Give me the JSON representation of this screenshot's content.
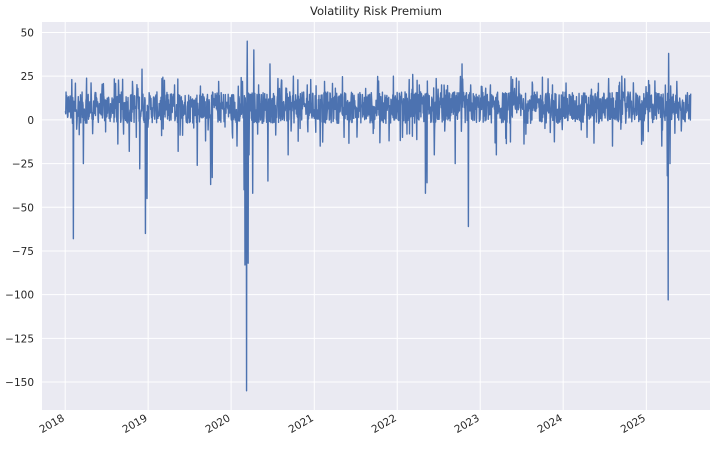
{
  "chart_data": {
    "type": "line",
    "title": "Volatility Risk Premium",
    "xlabel": "",
    "ylabel": "",
    "grid": true,
    "style": "seaborn-darkgrid",
    "x_range": [
      "2017-09-21",
      "2025-10-08"
    ],
    "ylim": [
      -166,
      56
    ],
    "yticks": [
      50,
      25,
      0,
      -25,
      -50,
      -75,
      -100,
      -125,
      -150
    ],
    "yticklabels": [
      "50",
      "25",
      "0",
      "−25",
      "−50",
      "−75",
      "−100",
      "−125",
      "−150"
    ],
    "xticks": [
      "2018-01-01",
      "2019-01-01",
      "2020-01-01",
      "2021-01-01",
      "2022-01-01",
      "2023-01-01",
      "2024-01-01",
      "2025-01-01"
    ],
    "xticklabels": [
      "2018",
      "2019",
      "2020",
      "2021",
      "2022",
      "2023",
      "2024",
      "2025"
    ],
    "colors": {
      "line": "#4c72b0",
      "plot_bg": "#eaeaf2",
      "grid": "#ffffff",
      "text": "#262626"
    },
    "series": [
      {
        "name": "",
        "values": [
          {
            "x": "2018-01-02",
            "y": 5
          },
          {
            "x": "2018-01-20",
            "y": 10
          },
          {
            "x": "2018-02-02",
            "y": -2
          },
          {
            "x": "2018-02-06",
            "y": -68
          },
          {
            "x": "2018-02-12",
            "y": 5
          },
          {
            "x": "2018-02-15",
            "y": 21
          },
          {
            "x": "2018-03-01",
            "y": 5
          },
          {
            "x": "2018-03-22",
            "y": -25
          },
          {
            "x": "2018-04-15",
            "y": 8
          },
          {
            "x": "2018-05-20",
            "y": 12
          },
          {
            "x": "2018-06-25",
            "y": 2
          },
          {
            "x": "2018-08-01",
            "y": 8
          },
          {
            "x": "2018-09-01",
            "y": 10
          },
          {
            "x": "2018-10-10",
            "y": -18
          },
          {
            "x": "2018-10-24",
            "y": 22
          },
          {
            "x": "2018-11-10",
            "y": -10
          },
          {
            "x": "2018-11-25",
            "y": -28
          },
          {
            "x": "2018-12-05",
            "y": 29
          },
          {
            "x": "2018-12-20",
            "y": -65
          },
          {
            "x": "2018-12-27",
            "y": -45
          },
          {
            "x": "2019-01-08",
            "y": 12
          },
          {
            "x": "2019-02-10",
            "y": 8
          },
          {
            "x": "2019-03-15",
            "y": 10
          },
          {
            "x": "2019-04-20",
            "y": 12
          },
          {
            "x": "2019-05-13",
            "y": -18
          },
          {
            "x": "2019-06-10",
            "y": 10
          },
          {
            "x": "2019-07-15",
            "y": 12
          },
          {
            "x": "2019-08-05",
            "y": -26
          },
          {
            "x": "2019-09-05",
            "y": 12
          },
          {
            "x": "2019-10-03",
            "y": -37
          },
          {
            "x": "2019-10-10",
            "y": -33
          },
          {
            "x": "2019-11-10",
            "y": 14
          },
          {
            "x": "2019-12-15",
            "y": 10
          },
          {
            "x": "2020-01-27",
            "y": -15
          },
          {
            "x": "2020-02-20",
            "y": 22
          },
          {
            "x": "2020-02-27",
            "y": -40
          },
          {
            "x": "2020-03-02",
            "y": -83
          },
          {
            "x": "2020-03-09",
            "y": -155
          },
          {
            "x": "2020-03-12",
            "y": 45
          },
          {
            "x": "2020-03-16",
            "y": -82
          },
          {
            "x": "2020-03-20",
            "y": -20
          },
          {
            "x": "2020-03-25",
            "y": 5
          },
          {
            "x": "2020-04-05",
            "y": -42
          },
          {
            "x": "2020-04-10",
            "y": 40
          },
          {
            "x": "2020-05-01",
            "y": 20
          },
          {
            "x": "2020-06-11",
            "y": -35
          },
          {
            "x": "2020-06-20",
            "y": 32
          },
          {
            "x": "2020-08-01",
            "y": 18
          },
          {
            "x": "2020-09-08",
            "y": -20
          },
          {
            "x": "2020-10-01",
            "y": 25
          },
          {
            "x": "2020-11-01",
            "y": 15
          },
          {
            "x": "2020-12-01",
            "y": 20
          },
          {
            "x": "2021-01-27",
            "y": -15
          },
          {
            "x": "2021-02-15",
            "y": 22
          },
          {
            "x": "2021-03-15",
            "y": 8
          },
          {
            "x": "2021-05-12",
            "y": -10
          },
          {
            "x": "2021-06-18",
            "y": 15
          },
          {
            "x": "2021-08-15",
            "y": 18
          },
          {
            "x": "2021-09-20",
            "y": -5
          },
          {
            "x": "2021-11-26",
            "y": -12
          },
          {
            "x": "2021-12-15",
            "y": 25
          },
          {
            "x": "2022-01-24",
            "y": -10
          },
          {
            "x": "2022-02-24",
            "y": -8
          },
          {
            "x": "2022-03-10",
            "y": 26
          },
          {
            "x": "2022-04-08",
            "y": 20
          },
          {
            "x": "2022-05-05",
            "y": -42
          },
          {
            "x": "2022-05-12",
            "y": -36
          },
          {
            "x": "2022-06-13",
            "y": -20
          },
          {
            "x": "2022-07-15",
            "y": 20
          },
          {
            "x": "2022-08-20",
            "y": 15
          },
          {
            "x": "2022-09-13",
            "y": -25
          },
          {
            "x": "2022-10-13",
            "y": 32
          },
          {
            "x": "2022-11-10",
            "y": -61
          },
          {
            "x": "2022-11-20",
            "y": 20
          },
          {
            "x": "2023-01-10",
            "y": 15
          },
          {
            "x": "2023-02-15",
            "y": 20
          },
          {
            "x": "2023-03-13",
            "y": -20
          },
          {
            "x": "2023-04-15",
            "y": 15
          },
          {
            "x": "2023-06-01",
            "y": 18
          },
          {
            "x": "2023-08-01",
            "y": 5
          },
          {
            "x": "2023-09-15",
            "y": 12
          },
          {
            "x": "2023-11-15",
            "y": 20
          },
          {
            "x": "2024-01-15",
            "y": 10
          },
          {
            "x": "2024-03-15",
            "y": 8
          },
          {
            "x": "2024-04-15",
            "y": -10
          },
          {
            "x": "2024-06-15",
            "y": 12
          },
          {
            "x": "2024-08-05",
            "y": -15
          },
          {
            "x": "2024-09-15",
            "y": 25
          },
          {
            "x": "2024-10-15",
            "y": 10
          },
          {
            "x": "2024-12-18",
            "y": -12
          },
          {
            "x": "2025-01-15",
            "y": 20
          },
          {
            "x": "2025-02-20",
            "y": 15
          },
          {
            "x": "2025-03-10",
            "y": -15
          },
          {
            "x": "2025-04-03",
            "y": -32
          },
          {
            "x": "2025-04-07",
            "y": -103
          },
          {
            "x": "2025-04-09",
            "y": 38
          },
          {
            "x": "2025-04-15",
            "y": -25
          },
          {
            "x": "2025-05-15",
            "y": 22
          },
          {
            "x": "2025-06-15",
            "y": 10
          },
          {
            "x": "2025-07-15",
            "y": 15
          }
        ]
      }
    ]
  }
}
